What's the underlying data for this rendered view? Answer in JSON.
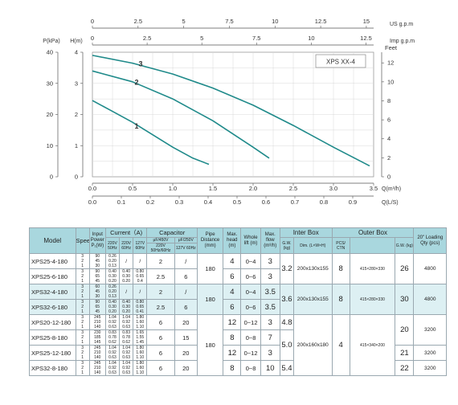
{
  "chart": {
    "model_label": "XPS XX-4",
    "top_axes": [
      {
        "ticks": [
          "0",
          "2.5",
          "5",
          "7.5",
          "10",
          "12.5",
          "15"
        ],
        "unit": "US g.p.m"
      },
      {
        "ticks": [
          "0",
          "2.5",
          "5",
          "7.5",
          "10",
          "12.5"
        ],
        "unit": "Imp g.p.m"
      }
    ],
    "left_axes": [
      {
        "label": "P(kPa)",
        "ticks": [
          "40",
          "30",
          "20",
          "10",
          "0"
        ]
      },
      {
        "label": "H(m)",
        "ticks": [
          "4",
          "3",
          "2",
          "1",
          "0"
        ]
      }
    ],
    "right_axis": {
      "label": "Feet",
      "ticks": [
        "12",
        "10",
        "8",
        "6",
        "4",
        "2",
        "0"
      ]
    },
    "bottom_axes": [
      {
        "ticks": [
          "0.0",
          "0.5",
          "1.0",
          "1.5",
          "2.0",
          "2.5",
          "3.0",
          "3.5"
        ],
        "unit": "Q(m³/h)"
      },
      {
        "ticks": [
          "0.0",
          "0.1",
          "0.2",
          "0.3",
          "0.4",
          "0.5",
          "0.6",
          "0.7",
          "0.8",
          "0.9"
        ],
        "unit": "Q(L/S)"
      }
    ],
    "curve_labels": [
      "3",
      "2",
      "1"
    ],
    "line_color": "#1f8a8a"
  },
  "chart_data": {
    "type": "line",
    "xlabel": "Q(m³/h)",
    "ylabel": "H(m)",
    "xlim": [
      0,
      3.5
    ],
    "ylim": [
      0,
      4
    ],
    "grid": true,
    "series": [
      {
        "name": "3",
        "x": [
          0,
          0.5,
          1.0,
          1.5,
          2.0,
          2.5,
          3.0,
          3.45
        ],
        "y": [
          3.9,
          3.65,
          3.3,
          2.85,
          2.3,
          1.65,
          0.95,
          0.35
        ]
      },
      {
        "name": "2",
        "x": [
          0,
          0.5,
          1.0,
          1.5,
          2.0,
          2.2
        ],
        "y": [
          3.4,
          3.05,
          2.5,
          1.8,
          0.95,
          0.6
        ]
      },
      {
        "name": "1",
        "x": [
          0,
          0.25,
          0.5,
          0.75,
          1.0,
          1.25,
          1.45
        ],
        "y": [
          2.45,
          2.1,
          1.75,
          1.35,
          0.95,
          0.6,
          0.4
        ]
      }
    ]
  },
  "table": {
    "headers": {
      "model": "Model",
      "speed": "Speed",
      "input_power": "Input Power",
      "input_power_unit": "P₁(W)",
      "current": "Current（A)",
      "current_sub": [
        "220V 50Hz",
        "220V 60Hz",
        "127V 60Hz"
      ],
      "capacitor": "Capacitor",
      "capacitor_sub": [
        "μF/450V",
        "μF/250V"
      ],
      "capacitor_sub2": [
        "220V 50Hz/60Hz",
        "127V 60Hz"
      ],
      "pipe": "Pipe Distance (mm)",
      "head": "Max. head (m)",
      "lift": "Whole lift (m)",
      "flow": "Max. flow (m³/h)",
      "inter_box": "Inter Box",
      "inter_sub": [
        "G.W. (kg)",
        "Dim. (L×W×H)"
      ],
      "outer_box": "Outer Box",
      "outer_sub": [
        "PCS/ CTN",
        "",
        "G.W. (kg)"
      ],
      "loading": "20\" Loading Qty (pcs)"
    },
    "rows": [
      {
        "model": "XPS25-4-180",
        "speed": [
          "3",
          "2",
          "1"
        ],
        "power": [
          "90",
          "45",
          "30"
        ],
        "c1": [
          "0.26",
          "0.20",
          "0.13"
        ],
        "c2": "/",
        "c3": "/",
        "cap1": "2",
        "cap2": "/",
        "head": "4",
        "lift": "0~4",
        "flow": "3",
        "hl": false
      },
      {
        "model": "XPS25-6-180",
        "speed": [
          "3",
          "2",
          "1"
        ],
        "power": [
          "90",
          "65",
          "45"
        ],
        "c1": [
          "0.40",
          "0.30",
          "0.20"
        ],
        "c2": [
          "0.40",
          "0.30",
          "0.20"
        ],
        "c3": [
          "0.80",
          "0.65",
          "0.4"
        ],
        "cap1": "2.5",
        "cap2": "6",
        "head": "6",
        "lift": "0~6",
        "flow": "3",
        "hl": false
      },
      {
        "model": "XPS32-4-180",
        "speed": [
          "3",
          "2",
          "1"
        ],
        "power": [
          "60",
          "45",
          "30"
        ],
        "c1": [
          "0.26",
          "0.20",
          "0.13"
        ],
        "c2": "/",
        "c3": "/",
        "cap1": "2",
        "cap2": "/",
        "head": "4",
        "lift": "0~4",
        "flow": "3.5",
        "hl": true
      },
      {
        "model": "XPS32-6-180",
        "speed": [
          "3",
          "2",
          "1"
        ],
        "power": [
          "90",
          "65",
          "45"
        ],
        "c1": [
          "0.40",
          "0.30",
          "0.20"
        ],
        "c2": [
          "0.40",
          "0.30",
          "0.20"
        ],
        "c3": [
          "0.80",
          "0.65",
          "0.41"
        ],
        "cap1": "2.5",
        "cap2": "6",
        "head": "6",
        "lift": "0~6",
        "flow": "3.5",
        "hl": true
      },
      {
        "model": "XPS20-12-180",
        "speed": [
          "3",
          "2",
          "1"
        ],
        "power": [
          "245",
          "210",
          "140"
        ],
        "c1": [
          "1.04",
          "0.92",
          "0.63"
        ],
        "c2": [
          "1.04",
          "0.92",
          "0.63"
        ],
        "c3": [
          "1.80",
          "1.60",
          "1.10"
        ],
        "cap1": "6",
        "cap2": "20",
        "head": "12",
        "lift": "0~12",
        "flow": "3",
        "hl": false
      },
      {
        "model": "XPS25-8-180",
        "speed": [
          "3",
          "2",
          "1"
        ],
        "power": [
          "230",
          "185",
          "145"
        ],
        "c1": [
          "0.83",
          "0.78",
          "0.62"
        ],
        "c2": [
          "0.83",
          "0.78",
          "0.62"
        ],
        "c3": [
          "1.65",
          "1.55",
          "1.45"
        ],
        "cap1": "6",
        "cap2": "15",
        "head": "8",
        "lift": "0~8",
        "flow": "7",
        "hl": false
      },
      {
        "model": "XPS25-12-180",
        "speed": [
          "3",
          "2",
          "1"
        ],
        "power": [
          "245",
          "210",
          "140"
        ],
        "c1": [
          "1.04",
          "0.92",
          "0.63"
        ],
        "c2": [
          "1.04",
          "0.92",
          "0.63"
        ],
        "c3": [
          "1.80",
          "1.60",
          "1.10"
        ],
        "cap1": "6",
        "cap2": "20",
        "head": "12",
        "lift": "0~12",
        "flow": "3",
        "hl": false
      },
      {
        "model": "XPS32-8-180",
        "speed": [
          "3",
          "2",
          "1"
        ],
        "power": [
          "245",
          "210",
          "140"
        ],
        "c1": [
          "1.04",
          "0.92",
          "0.63"
        ],
        "c2": [
          "1.04",
          "0.92",
          "0.63"
        ],
        "c3": [
          "1.80",
          "1.60",
          "1.10"
        ],
        "cap1": "6",
        "cap2": "20",
        "head": "8",
        "lift": "0~8",
        "flow": "10",
        "hl": false
      }
    ],
    "groups": {
      "pipe": [
        "180",
        "180",
        "180"
      ],
      "gw_inter": [
        "3.2",
        "3.6",
        "4.8",
        "5.0",
        "5.4"
      ],
      "dim_inter": [
        "200x130x155",
        "200x130x155",
        "200x160x180"
      ],
      "pcs": [
        "8",
        "8",
        "4"
      ],
      "dim_outer": [
        "415×280×330",
        "415×280×330",
        "415×340×200"
      ],
      "gw_outer": [
        "26",
        "30",
        "20",
        "21",
        "22"
      ],
      "loading": [
        "4800",
        "4800",
        "3200",
        "3200",
        "3200"
      ]
    }
  }
}
